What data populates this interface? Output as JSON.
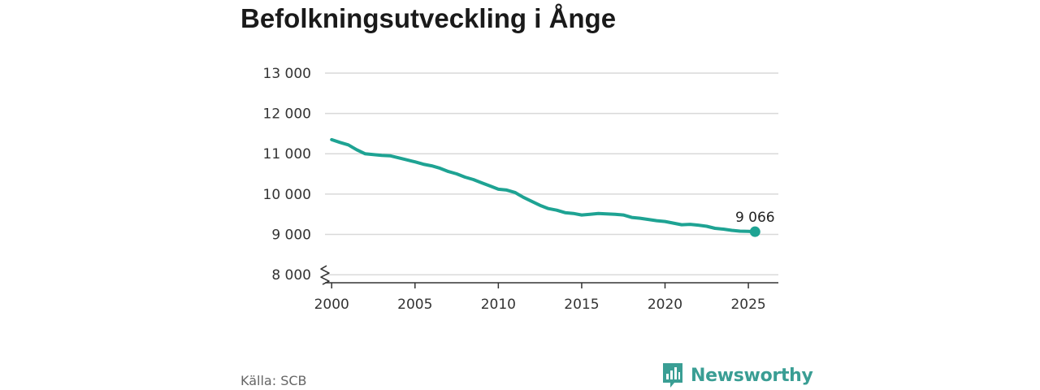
{
  "title": "Befolkningsutveckling i Ånge",
  "source": "Källa: SCB",
  "brand": {
    "name": "Newsworthy",
    "icon": "newsworthy-logo-icon",
    "color": "#3a9e94"
  },
  "colors": {
    "line": "#1ea393",
    "grid": "#d9d9d9",
    "axis": "#333333"
  },
  "chart_data": {
    "type": "line",
    "title": "Befolkningsutveckling i Ånge",
    "xlabel": "",
    "ylabel": "",
    "xlim": [
      1999.6,
      2026.8
    ],
    "ylim": [
      7800,
      13000
    ],
    "y_axis_break": true,
    "grid": true,
    "y_ticks": [
      8000,
      9000,
      10000,
      11000,
      12000,
      13000
    ],
    "y_tick_labels": [
      "8 000",
      "9 000",
      "10 000",
      "11 000",
      "12 000",
      "13 000"
    ],
    "x_ticks": [
      2000,
      2005,
      2010,
      2015,
      2020,
      2025
    ],
    "x_tick_labels": [
      "2000",
      "2005",
      "2010",
      "2015",
      "2020",
      "2025"
    ],
    "end_label": "9 066",
    "series": [
      {
        "x": [
          2000.0,
          2000.5,
          2001.0,
          2001.5,
          2002.0,
          2002.5,
          2003.0,
          2003.5,
          2004.0,
          2004.5,
          2005.0,
          2005.5,
          2006.0,
          2006.5,
          2007.0,
          2007.5,
          2008.0,
          2008.5,
          2009.0,
          2009.5,
          2010.0,
          2010.5,
          2011.0,
          2011.5,
          2012.0,
          2012.5,
          2013.0,
          2013.5,
          2014.0,
          2014.5,
          2015.0,
          2015.5,
          2016.0,
          2016.5,
          2017.0,
          2017.5,
          2018.0,
          2018.5,
          2019.0,
          2019.5,
          2020.0,
          2020.5,
          2021.0,
          2021.5,
          2022.0,
          2022.5,
          2023.0,
          2023.5,
          2024.0,
          2024.5,
          2025.0,
          2025.4
        ],
        "values": [
          11350,
          11280,
          11220,
          11100,
          11000,
          10980,
          10960,
          10950,
          10900,
          10850,
          10800,
          10740,
          10700,
          10640,
          10560,
          10500,
          10420,
          10360,
          10280,
          10200,
          10120,
          10100,
          10040,
          9920,
          9820,
          9720,
          9640,
          9600,
          9540,
          9520,
          9480,
          9500,
          9520,
          9510,
          9500,
          9480,
          9420,
          9400,
          9370,
          9340,
          9320,
          9280,
          9240,
          9250,
          9230,
          9200,
          9150,
          9130,
          9100,
          9080,
          9075,
          9066
        ]
      }
    ]
  }
}
